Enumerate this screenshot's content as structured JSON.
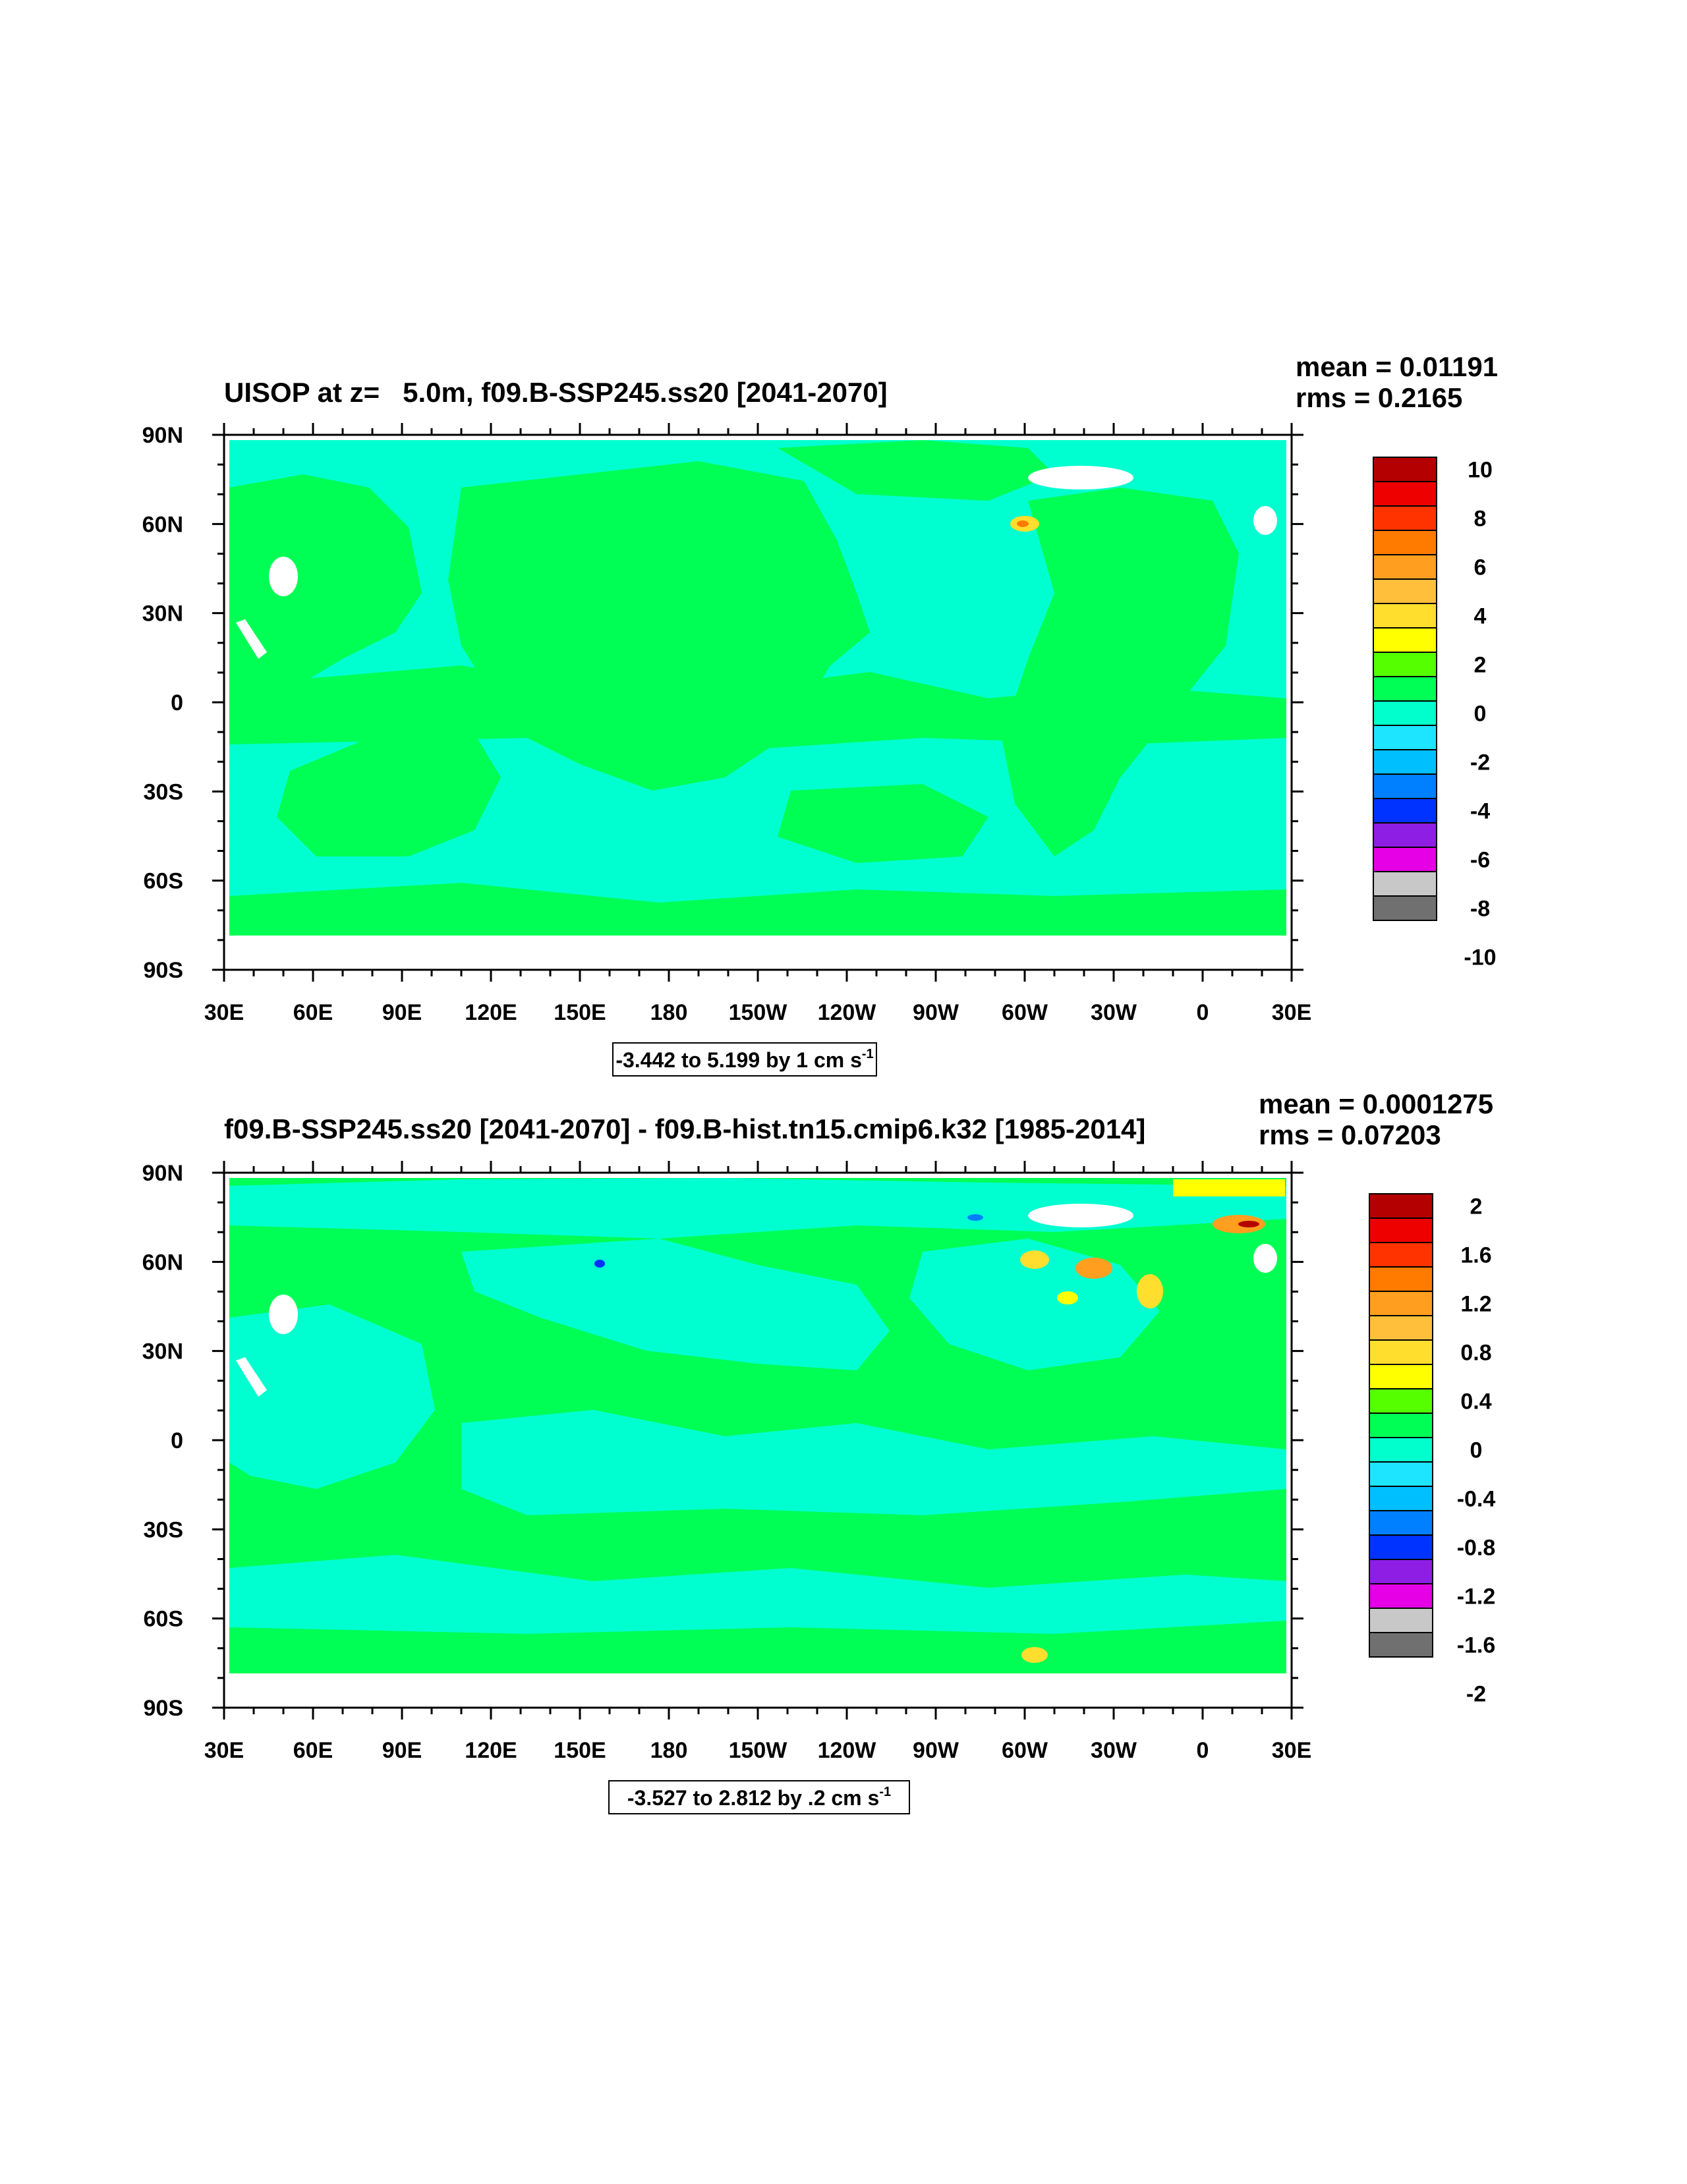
{
  "chart_data": [
    {
      "type": "heatmap",
      "title": "UISOP at z=   5.0m, f09.B-SSP245.ss20 [2041-2070]",
      "stats": {
        "mean": "mean = 0.01191",
        "rms": "rms = 0.2165"
      },
      "x_tick_labels": [
        "30E",
        "60E",
        "90E",
        "120E",
        "150E",
        "180",
        "150W",
        "120W",
        "90W",
        "60W",
        "30W",
        "0",
        "30E"
      ],
      "y_tick_labels": [
        "90N",
        "60N",
        "30N",
        "0",
        "30S",
        "60S",
        "90S"
      ],
      "xlim": [
        30,
        390
      ],
      "ylim": [
        -90,
        90
      ],
      "contour_info": {
        "text": "-3.442 to 5.199 by 1 cm s",
        "sup": "-1"
      },
      "colorbar": {
        "labels": [
          "10",
          "8",
          "6",
          "4",
          "2",
          "0",
          "-2",
          "-4",
          "-6",
          "-8",
          "-10"
        ],
        "levels": [
          10,
          8,
          6,
          4,
          2,
          0,
          -2,
          -4,
          -6,
          -8,
          -10
        ]
      },
      "dominant_colors": {
        "positive_small": "#00ff55",
        "negative_small": "#00ffd8",
        "missing": "#ffffff"
      }
    },
    {
      "type": "heatmap",
      "title": "f09.B-SSP245.ss20 [2041-2070] - f09.B-hist.tn15.cmip6.k32 [1985-2014]",
      "stats": {
        "mean": "mean = 0.0001275",
        "rms": "rms = 0.07203"
      },
      "x_tick_labels": [
        "30E",
        "60E",
        "90E",
        "120E",
        "150E",
        "180",
        "150W",
        "120W",
        "90W",
        "60W",
        "30W",
        "0",
        "30E"
      ],
      "y_tick_labels": [
        "90N",
        "60N",
        "30N",
        "0",
        "30S",
        "60S",
        "90S"
      ],
      "xlim": [
        30,
        390
      ],
      "ylim": [
        -90,
        90
      ],
      "contour_info": {
        "text": "-3.527 to 2.812 by .2 cm s",
        "sup": "-1"
      },
      "colorbar": {
        "labels": [
          "2",
          "1.6",
          "1.2",
          "0.8",
          "0.4",
          "0",
          "-0.4",
          "-0.8",
          "-1.2",
          "-1.6",
          "-2"
        ],
        "levels": [
          2,
          1.6,
          1.2,
          0.8,
          0.4,
          0,
          -0.4,
          -0.8,
          -1.2,
          -1.6,
          -2
        ]
      },
      "dominant_colors": {
        "positive_small": "#00ff55",
        "negative_small": "#00ffd8",
        "missing": "#ffffff"
      }
    }
  ],
  "palette": [
    "#b50000",
    "#ee0000",
    "#ff3300",
    "#ff7b00",
    "#ff9e1f",
    "#ffbf3b",
    "#ffde2e",
    "#ffff00",
    "#55ff00",
    "#00ff55",
    "#00ffcc",
    "#1ee5ff",
    "#00bfff",
    "#0080ff",
    "#0033ff",
    "#8f1ee5",
    "#e500e5",
    "#c8c8c8",
    "#707070"
  ]
}
